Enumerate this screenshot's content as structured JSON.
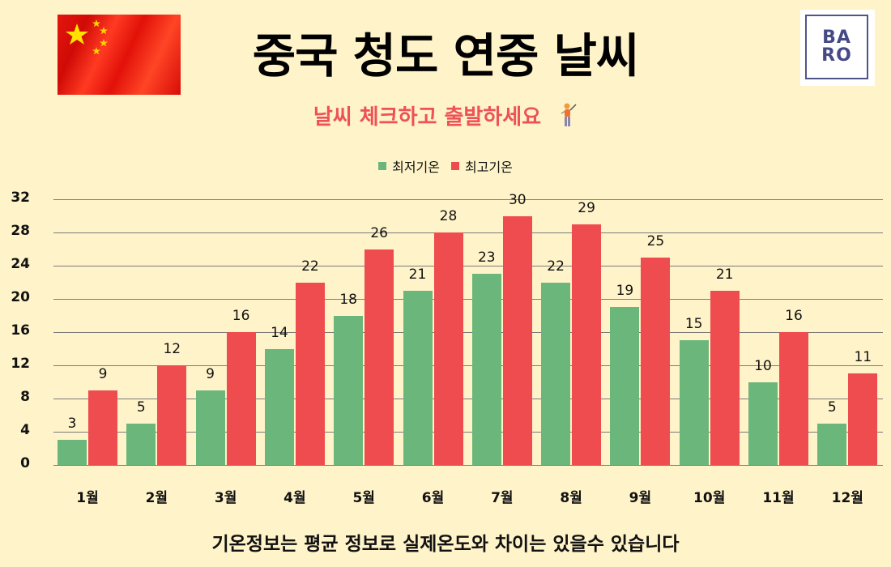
{
  "header": {
    "title": "중국 청도 연중 날씨",
    "subtitle": "날씨 체크하고 출발하세요",
    "subtitle_icon": "golfer-icon",
    "flag": "china-flag",
    "logo": {
      "line1": "BA",
      "line2": "RO",
      "glyph_a": "Λ",
      "glyph_o": "O"
    }
  },
  "colors": {
    "background": "#fff3c9",
    "low": "#6bb77b",
    "high": "#ee4c4f",
    "subtitle": "#ec5257",
    "grid": "#7b7b7b"
  },
  "legend": [
    {
      "label": "최저기온",
      "color": "#6bb77b"
    },
    {
      "label": "최고기온",
      "color": "#ee4c4f"
    }
  ],
  "footer": {
    "note": "기온정보는 평균 정보로 실제온도와 차이는 있을수 있습니다"
  },
  "chart_data": {
    "type": "bar",
    "title": "중국 청도 연중 날씨",
    "subtitle": "날씨 체크하고 출발하세요",
    "xlabel": "",
    "ylabel": "",
    "categories": [
      "1월",
      "2월",
      "3월",
      "4월",
      "5월",
      "6월",
      "7월",
      "8월",
      "9월",
      "10월",
      "11월",
      "12월"
    ],
    "series": [
      {
        "name": "최저기온",
        "color": "#6bb77b",
        "values": [
          3,
          5,
          9,
          14,
          18,
          21,
          23,
          22,
          19,
          15,
          10,
          5
        ]
      },
      {
        "name": "최고기온",
        "color": "#ee4c4f",
        "values": [
          9,
          12,
          16,
          22,
          26,
          28,
          30,
          29,
          25,
          21,
          16,
          11
        ]
      }
    ],
    "ylim": [
      0,
      32
    ],
    "yticks": [
      0,
      4,
      8,
      12,
      16,
      20,
      24,
      28,
      32
    ],
    "grid": true,
    "legend_position": "top",
    "data_labels": true
  }
}
